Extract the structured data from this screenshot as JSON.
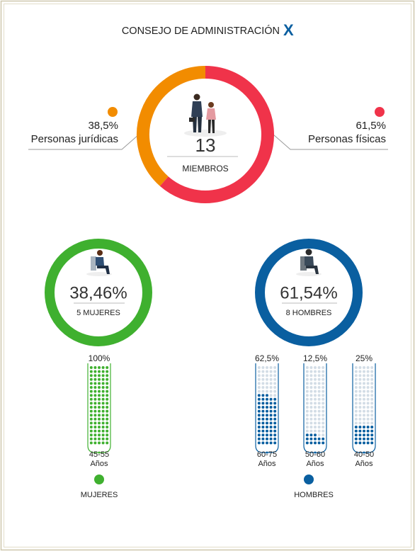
{
  "title": "CONSEJO DE ADMINISTRACIÓN",
  "logo": "X",
  "chart_data": [
    {
      "type": "donut",
      "categories": [
        "Personas jurídicas",
        "Personas físicas"
      ],
      "values": [
        38.5,
        61.5
      ],
      "value_labels": [
        "38,5%",
        "61,5%"
      ],
      "colors": [
        "#f28c00",
        "#f0334a"
      ],
      "center_value": "13",
      "center_label": "MIEMBROS"
    },
    {
      "type": "ring",
      "value_label": "38,46%",
      "label": "5 MUJERES",
      "color": "#3fb02f"
    },
    {
      "type": "ring",
      "value_label": "61,54%",
      "label": "8 HOMBRES",
      "color": "#0a5fa0"
    },
    {
      "type": "dots",
      "name": "MUJERES",
      "color": "#3fb02f",
      "categories": [
        "45-55"
      ],
      "unit": "Años",
      "values": [
        100
      ],
      "value_labels": [
        "100%"
      ]
    },
    {
      "type": "dots",
      "name": "HOMBRES",
      "color": "#0a5fa0",
      "categories": [
        "60-75",
        "50-60",
        "40-50"
      ],
      "unit": "Años",
      "values": [
        62.5,
        12.5,
        25
      ],
      "value_labels": [
        "62,5%",
        "12,5%",
        "25%"
      ]
    }
  ]
}
